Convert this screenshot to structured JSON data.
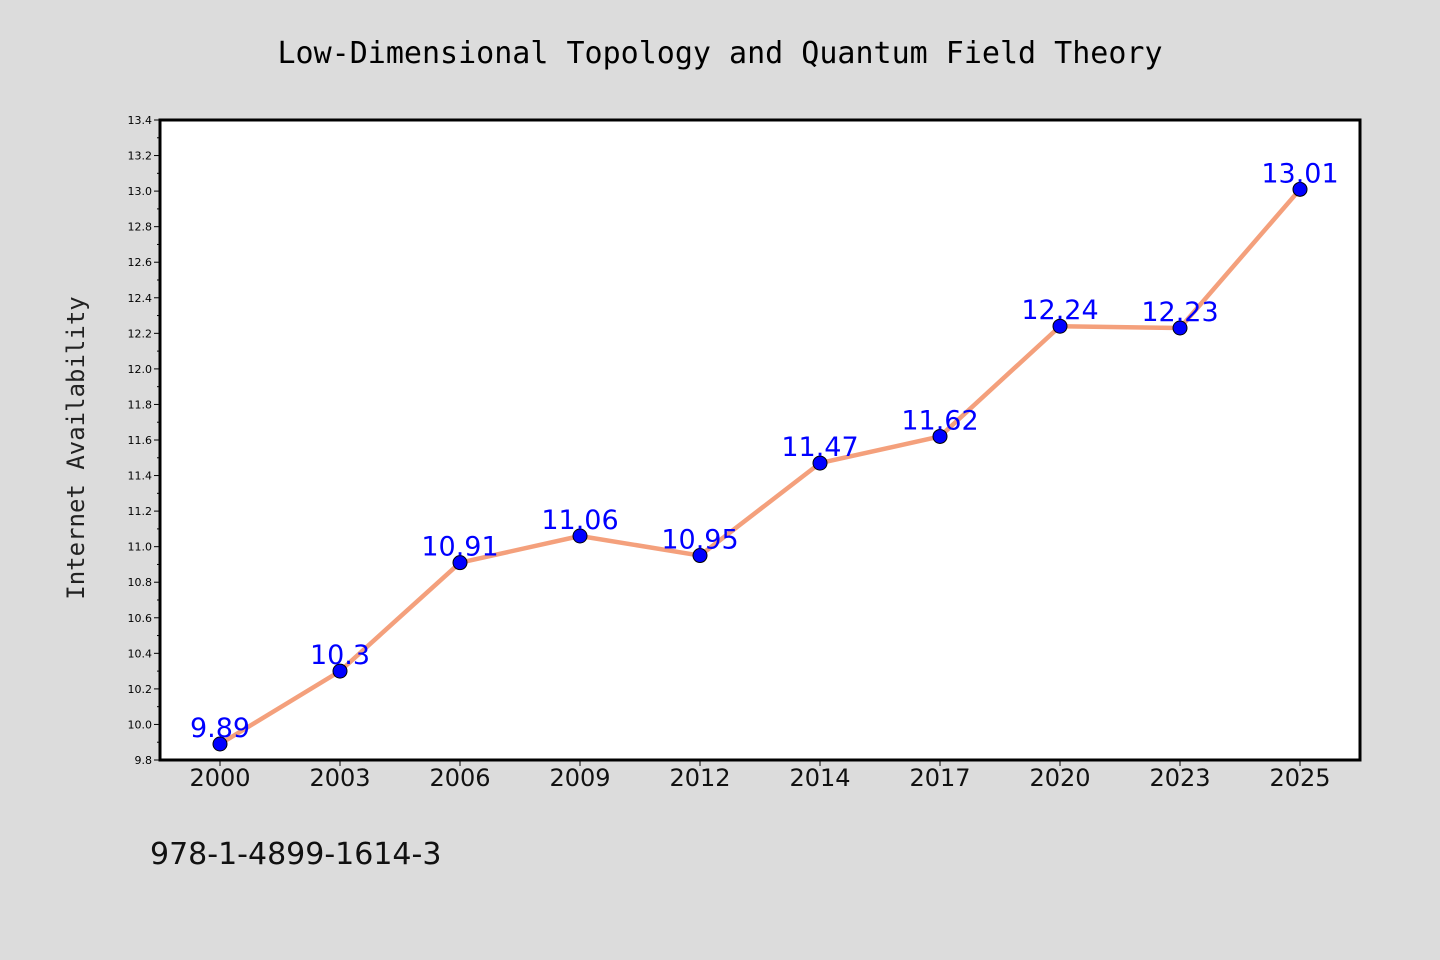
{
  "chart_data": {
    "type": "line",
    "title": "Low-Dimensional Topology and Quantum Field Theory",
    "xlabel": "",
    "ylabel": "Internet Availability",
    "categories": [
      "2000",
      "2003",
      "2006",
      "2009",
      "2012",
      "2014",
      "2017",
      "2020",
      "2023",
      "2025"
    ],
    "series": [
      {
        "values": [
          9.89,
          10.3,
          10.91,
          11.06,
          10.95,
          11.47,
          11.62,
          12.24,
          12.23,
          13.01
        ],
        "labels": [
          "9.89",
          "10.3",
          "10.91",
          "11.06",
          "10.95",
          "11.47",
          "11.62",
          "12.24",
          "12.23",
          "13.01"
        ],
        "line_color": "#f4a07c",
        "marker_color": "#0000ff"
      }
    ],
    "ylim": [
      9.8,
      13.4
    ],
    "yticks": [
      "9.8",
      "10.0",
      "10.2",
      "10.4",
      "10.6",
      "10.8",
      "11.0",
      "11.2",
      "11.4",
      "11.6",
      "11.8",
      "12.0",
      "12.2",
      "12.4",
      "12.6",
      "12.8",
      "13.0",
      "13.2",
      "13.4"
    ],
    "grid": false,
    "legend": "none"
  },
  "footer": {
    "text": "978-1-4899-1614-3"
  },
  "colors": {
    "background": "#dcdcdc",
    "plot_background": "#ffffff",
    "label_color": "#0000ff"
  }
}
